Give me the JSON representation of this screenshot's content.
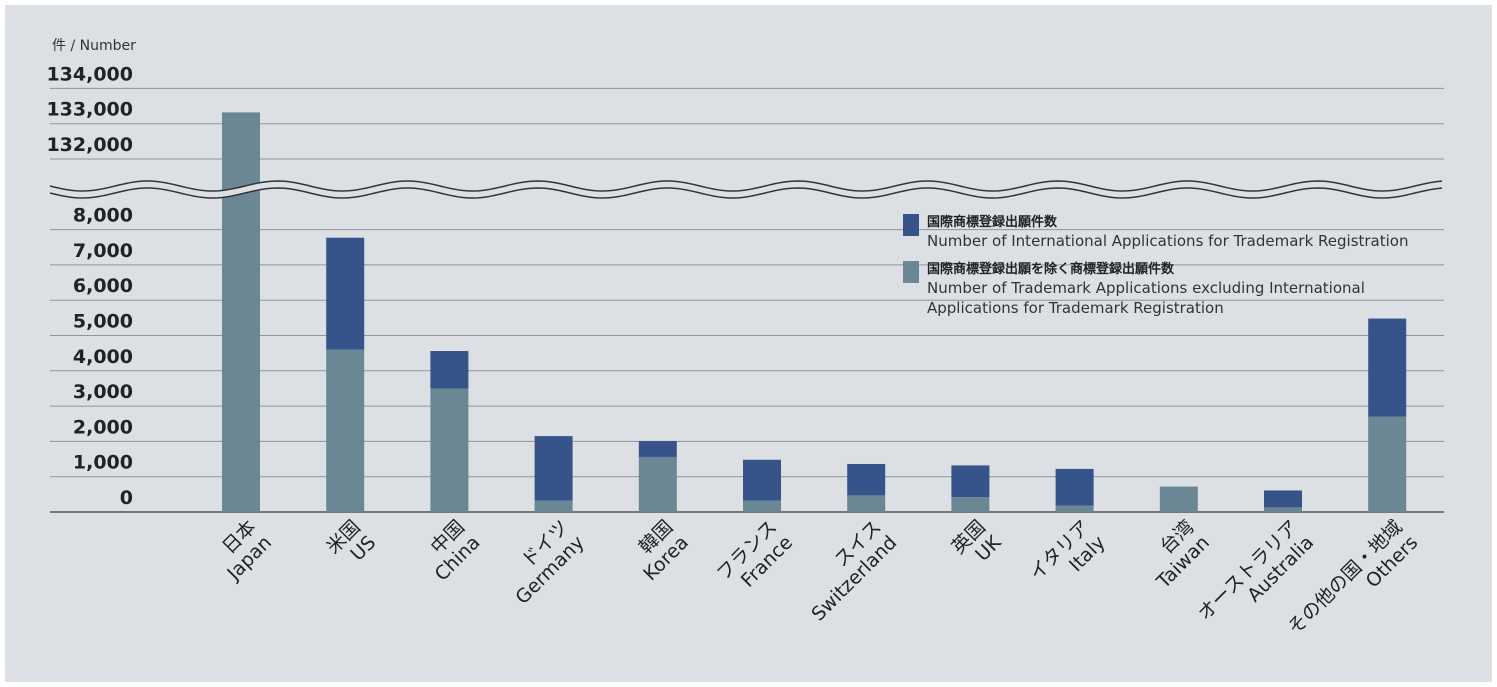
{
  "chart_data": {
    "type": "bar",
    "stacked": true,
    "y_unit_label": "件 / Number",
    "y_break": {
      "lower_range": [
        0,
        8000
      ],
      "upper_range": [
        131000,
        134000
      ]
    },
    "y_ticks_lower": [
      "0",
      "1,000",
      "2,000",
      "3,000",
      "4,000",
      "5,000",
      "6,000",
      "7,000",
      "8,000"
    ],
    "y_ticks_upper": [
      "132,000",
      "133,000",
      "134,000"
    ],
    "categories": [
      {
        "ja": "日本",
        "en": "Japan"
      },
      {
        "ja": "米国",
        "en": "US"
      },
      {
        "ja": "中国",
        "en": "China"
      },
      {
        "ja": "ドイツ",
        "en": "Germany"
      },
      {
        "ja": "韓国",
        "en": "Korea"
      },
      {
        "ja": "フランス",
        "en": "France"
      },
      {
        "ja": "スイス",
        "en": "Switzerland"
      },
      {
        "ja": "英国",
        "en": "UK"
      },
      {
        "ja": "イタリア",
        "en": "Italy"
      },
      {
        "ja": "台湾",
        "en": "Taiwan"
      },
      {
        "ja": "オーストラリア",
        "en": "Australia"
      },
      {
        "ja": "その他の国・地域",
        "en": "Others"
      }
    ],
    "series": [
      {
        "name_ja": "国際商標登録出願を除く商標登録出願件数",
        "name_en_lines": [
          "Number of Trademark Applications excluding International",
          "Applications for Trademark Registration"
        ],
        "color": "#6b8793",
        "values": [
          133320,
          4600,
          3500,
          320,
          1560,
          320,
          470,
          420,
          180,
          720,
          130,
          2700
        ]
      },
      {
        "name_ja": "国際商標登録出願件数",
        "name_en_lines": [
          "Number of International Applications for Trademark Registration"
        ],
        "color": "#36538a",
        "values": [
          0,
          3170,
          1060,
          1830,
          450,
          1160,
          890,
          900,
          1040,
          0,
          480,
          2780
        ]
      }
    ],
    "legend_position": "right, upper part of lower panel",
    "grid": true
  }
}
